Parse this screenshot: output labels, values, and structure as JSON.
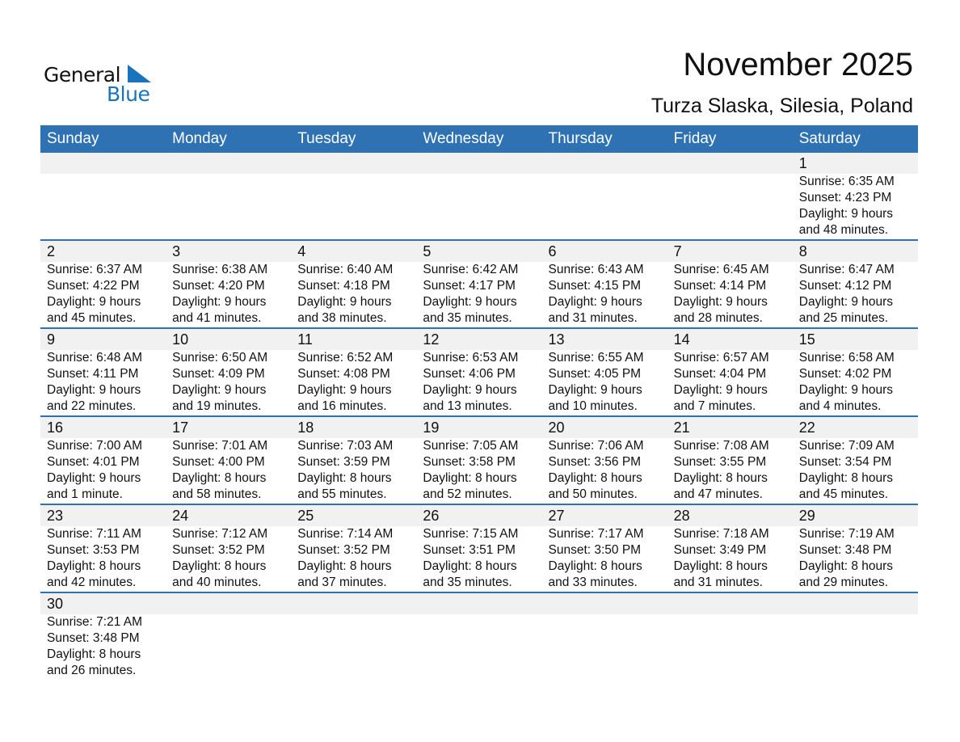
{
  "logo": {
    "line1": "General",
    "line2": "Blue",
    "color": "#1a74bb"
  },
  "header": {
    "title": "November 2025",
    "location": "Turza Slaska, Silesia, Poland"
  },
  "colors": {
    "header_bg": "#2e72b3",
    "date_strip": "#f1f1f1"
  },
  "weekdays": [
    "Sunday",
    "Monday",
    "Tuesday",
    "Wednesday",
    "Thursday",
    "Friday",
    "Saturday"
  ],
  "first_weekday_index": 6,
  "days": [
    {
      "day": "1",
      "sunrise": "Sunrise: 6:35 AM",
      "sunset": "Sunset: 4:23 PM",
      "daylight": "Daylight: 9 hours",
      "minutes": "and 48 minutes."
    },
    {
      "day": "2",
      "sunrise": "Sunrise: 6:37 AM",
      "sunset": "Sunset: 4:22 PM",
      "daylight": "Daylight: 9 hours",
      "minutes": "and 45 minutes."
    },
    {
      "day": "3",
      "sunrise": "Sunrise: 6:38 AM",
      "sunset": "Sunset: 4:20 PM",
      "daylight": "Daylight: 9 hours",
      "minutes": "and 41 minutes."
    },
    {
      "day": "4",
      "sunrise": "Sunrise: 6:40 AM",
      "sunset": "Sunset: 4:18 PM",
      "daylight": "Daylight: 9 hours",
      "minutes": "and 38 minutes."
    },
    {
      "day": "5",
      "sunrise": "Sunrise: 6:42 AM",
      "sunset": "Sunset: 4:17 PM",
      "daylight": "Daylight: 9 hours",
      "minutes": "and 35 minutes."
    },
    {
      "day": "6",
      "sunrise": "Sunrise: 6:43 AM",
      "sunset": "Sunset: 4:15 PM",
      "daylight": "Daylight: 9 hours",
      "minutes": "and 31 minutes."
    },
    {
      "day": "7",
      "sunrise": "Sunrise: 6:45 AM",
      "sunset": "Sunset: 4:14 PM",
      "daylight": "Daylight: 9 hours",
      "minutes": "and 28 minutes."
    },
    {
      "day": "8",
      "sunrise": "Sunrise: 6:47 AM",
      "sunset": "Sunset: 4:12 PM",
      "daylight": "Daylight: 9 hours",
      "minutes": "and 25 minutes."
    },
    {
      "day": "9",
      "sunrise": "Sunrise: 6:48 AM",
      "sunset": "Sunset: 4:11 PM",
      "daylight": "Daylight: 9 hours",
      "minutes": "and 22 minutes."
    },
    {
      "day": "10",
      "sunrise": "Sunrise: 6:50 AM",
      "sunset": "Sunset: 4:09 PM",
      "daylight": "Daylight: 9 hours",
      "minutes": "and 19 minutes."
    },
    {
      "day": "11",
      "sunrise": "Sunrise: 6:52 AM",
      "sunset": "Sunset: 4:08 PM",
      "daylight": "Daylight: 9 hours",
      "minutes": "and 16 minutes."
    },
    {
      "day": "12",
      "sunrise": "Sunrise: 6:53 AM",
      "sunset": "Sunset: 4:06 PM",
      "daylight": "Daylight: 9 hours",
      "minutes": "and 13 minutes."
    },
    {
      "day": "13",
      "sunrise": "Sunrise: 6:55 AM",
      "sunset": "Sunset: 4:05 PM",
      "daylight": "Daylight: 9 hours",
      "minutes": "and 10 minutes."
    },
    {
      "day": "14",
      "sunrise": "Sunrise: 6:57 AM",
      "sunset": "Sunset: 4:04 PM",
      "daylight": "Daylight: 9 hours",
      "minutes": "and 7 minutes."
    },
    {
      "day": "15",
      "sunrise": "Sunrise: 6:58 AM",
      "sunset": "Sunset: 4:02 PM",
      "daylight": "Daylight: 9 hours",
      "minutes": "and 4 minutes."
    },
    {
      "day": "16",
      "sunrise": "Sunrise: 7:00 AM",
      "sunset": "Sunset: 4:01 PM",
      "daylight": "Daylight: 9 hours",
      "minutes": "and 1 minute."
    },
    {
      "day": "17",
      "sunrise": "Sunrise: 7:01 AM",
      "sunset": "Sunset: 4:00 PM",
      "daylight": "Daylight: 8 hours",
      "minutes": "and 58 minutes."
    },
    {
      "day": "18",
      "sunrise": "Sunrise: 7:03 AM",
      "sunset": "Sunset: 3:59 PM",
      "daylight": "Daylight: 8 hours",
      "minutes": "and 55 minutes."
    },
    {
      "day": "19",
      "sunrise": "Sunrise: 7:05 AM",
      "sunset": "Sunset: 3:58 PM",
      "daylight": "Daylight: 8 hours",
      "minutes": "and 52 minutes."
    },
    {
      "day": "20",
      "sunrise": "Sunrise: 7:06 AM",
      "sunset": "Sunset: 3:56 PM",
      "daylight": "Daylight: 8 hours",
      "minutes": "and 50 minutes."
    },
    {
      "day": "21",
      "sunrise": "Sunrise: 7:08 AM",
      "sunset": "Sunset: 3:55 PM",
      "daylight": "Daylight: 8 hours",
      "minutes": "and 47 minutes."
    },
    {
      "day": "22",
      "sunrise": "Sunrise: 7:09 AM",
      "sunset": "Sunset: 3:54 PM",
      "daylight": "Daylight: 8 hours",
      "minutes": "and 45 minutes."
    },
    {
      "day": "23",
      "sunrise": "Sunrise: 7:11 AM",
      "sunset": "Sunset: 3:53 PM",
      "daylight": "Daylight: 8 hours",
      "minutes": "and 42 minutes."
    },
    {
      "day": "24",
      "sunrise": "Sunrise: 7:12 AM",
      "sunset": "Sunset: 3:52 PM",
      "daylight": "Daylight: 8 hours",
      "minutes": "and 40 minutes."
    },
    {
      "day": "25",
      "sunrise": "Sunrise: 7:14 AM",
      "sunset": "Sunset: 3:52 PM",
      "daylight": "Daylight: 8 hours",
      "minutes": "and 37 minutes."
    },
    {
      "day": "26",
      "sunrise": "Sunrise: 7:15 AM",
      "sunset": "Sunset: 3:51 PM",
      "daylight": "Daylight: 8 hours",
      "minutes": "and 35 minutes."
    },
    {
      "day": "27",
      "sunrise": "Sunrise: 7:17 AM",
      "sunset": "Sunset: 3:50 PM",
      "daylight": "Daylight: 8 hours",
      "minutes": "and 33 minutes."
    },
    {
      "day": "28",
      "sunrise": "Sunrise: 7:18 AM",
      "sunset": "Sunset: 3:49 PM",
      "daylight": "Daylight: 8 hours",
      "minutes": "and 31 minutes."
    },
    {
      "day": "29",
      "sunrise": "Sunrise: 7:19 AM",
      "sunset": "Sunset: 3:48 PM",
      "daylight": "Daylight: 8 hours",
      "minutes": "and 29 minutes."
    },
    {
      "day": "30",
      "sunrise": "Sunrise: 7:21 AM",
      "sunset": "Sunset: 3:48 PM",
      "daylight": "Daylight: 8 hours",
      "minutes": "and 26 minutes."
    }
  ]
}
